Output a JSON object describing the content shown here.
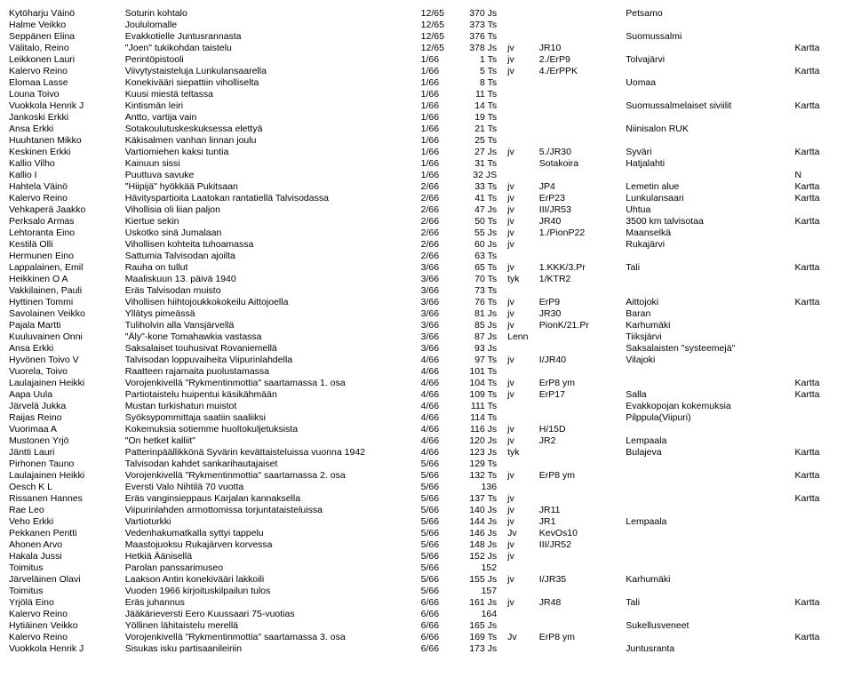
{
  "rows": [
    {
      "c0": "Kytöharju Väinö",
      "c1": "Soturin kohtalo",
      "c2": "12/65",
      "c3": "370 Js",
      "c4": "",
      "c5": "",
      "c6": "Petsamo",
      "c7": ""
    },
    {
      "c0": "Halme Veikko",
      "c1": "Joululomalle",
      "c2": "12/65",
      "c3": "373 Ts",
      "c4": "",
      "c5": "",
      "c6": "",
      "c7": ""
    },
    {
      "c0": "Seppänen Elina",
      "c1": "Evakkotielle Juntusrannasta",
      "c2": "12/65",
      "c3": "376 Ts",
      "c4": "",
      "c5": "",
      "c6": "Suomussalmi",
      "c7": ""
    },
    {
      "c0": "Välitalo, Reino",
      "c1": "\"Joen\" tukikohdan taistelu",
      "c2": "12/65",
      "c3": "378 Js",
      "c4": "jv",
      "c5": "JR10",
      "c6": "",
      "c7": "Kartta"
    },
    {
      "c0": "Leikkonen Lauri",
      "c1": "Perintöpistooli",
      "c2": "1/66",
      "c3": "1 Ts",
      "c4": "jv",
      "c5": "2./ErP9",
      "c6": "Tolvajärvi",
      "c7": ""
    },
    {
      "c0": "Kalervo Reino",
      "c1": "Viivytystaisteluja Lunkulansaarella",
      "c2": "1/66",
      "c3": "5 Ts",
      "c4": "jv",
      "c5": "4./ErPPK",
      "c6": "",
      "c7": "Kartta"
    },
    {
      "c0": "Elomaa Lasse",
      "c1": "Konekivääri siepattiin viholliselta",
      "c2": "1/66",
      "c3": "8 Ts",
      "c4": "",
      "c5": "",
      "c6": "Uomaa",
      "c7": ""
    },
    {
      "c0": "Louna Toivo",
      "c1": "Kuusi miestä teltassa",
      "c2": "1/66",
      "c3": "11 Ts",
      "c4": "",
      "c5": "",
      "c6": "",
      "c7": ""
    },
    {
      "c0": "Vuokkola Henrik J",
      "c1": "Kintismän leiri",
      "c2": "1/66",
      "c3": "14 Ts",
      "c4": "",
      "c5": "",
      "c6": "Suomussalmelaiset siviilit",
      "c7": "Kartta"
    },
    {
      "c0": "Jankoski Erkki",
      "c1": "Antto, vartija vain",
      "c2": "1/66",
      "c3": "19 Ts",
      "c4": "",
      "c5": "",
      "c6": "",
      "c7": ""
    },
    {
      "c0": "Ansa Erkki",
      "c1": "Sotakoulutuskeskuksessa elettyä",
      "c2": "1/66",
      "c3": "21 Ts",
      "c4": "",
      "c5": "",
      "c6": "Niinisalon RUK",
      "c7": ""
    },
    {
      "c0": "Huuhtanen Mikko",
      "c1": "Käkisalmen vanhan linnan joulu",
      "c2": "1/66",
      "c3": "25 Ts",
      "c4": "",
      "c5": "",
      "c6": "",
      "c7": ""
    },
    {
      "c0": "Keskinen Erkki",
      "c1": "Vartiomiehen kaksi tuntia",
      "c2": "1/66",
      "c3": "27 Js",
      "c4": "jv",
      "c5": "5./JR30",
      "c6": "Syväri",
      "c7": "Kartta"
    },
    {
      "c0": "Kallio Vilho",
      "c1": "Kainuun sissi",
      "c2": "1/66",
      "c3": "31 Ts",
      "c4": "",
      "c5": "Sotakoira",
      "c6": "Hatjalahti",
      "c7": ""
    },
    {
      "c0": "Kallio I",
      "c1": "Puuttuva savuke",
      "c2": "1/66",
      "c3": "32 JS",
      "c4": "",
      "c5": "",
      "c6": "",
      "c7": "N"
    },
    {
      "c0": "Hahtela Väinö",
      "c1": "\"Hiipijä\" hyökkää Pukitsaan",
      "c2": "2/66",
      "c3": "33 Ts",
      "c4": "jv",
      "c5": "JP4",
      "c6": "Lemetin alue",
      "c7": "Kartta"
    },
    {
      "c0": "Kalervo Reino",
      "c1": "Hävityspartioita Laatokan rantatiellä Talvisodassa",
      "c2": "2/66",
      "c3": "41 Ts",
      "c4": "jv",
      "c5": "ErP23",
      "c6": "Lunkulansaari",
      "c7": "Kartta"
    },
    {
      "c0": "Vehkaperä Jaakko",
      "c1": "Vihollisia oli liian paljon",
      "c2": "2/66",
      "c3": "47 Js",
      "c4": "jv",
      "c5": "III/JR53",
      "c6": "Uhtua",
      "c7": ""
    },
    {
      "c0": "Perksalo Armas",
      "c1": "Kiertue sekin",
      "c2": "2/66",
      "c3": "50 Ts",
      "c4": "jv",
      "c5": "JR40",
      "c6": "3500 km talvisotaa",
      "c7": "Kartta"
    },
    {
      "c0": "Lehtoranta Eino",
      "c1": "Uskotko sinä Jumalaan",
      "c2": "2/66",
      "c3": "55 Js",
      "c4": "jv",
      "c5": "1./PionP22",
      "c6": "Maanselkä",
      "c7": ""
    },
    {
      "c0": "Kestilä Olli",
      "c1": "Vihollisen kohteita tuhoamassa",
      "c2": "2/66",
      "c3": "60 Js",
      "c4": "jv",
      "c5": "",
      "c6": "Rukajärvi",
      "c7": ""
    },
    {
      "c0": "Hermunen Eino",
      "c1": "Sattumia Talvisodan ajoilta",
      "c2": "2/66",
      "c3": "63 Ts",
      "c4": "",
      "c5": "",
      "c6": "",
      "c7": ""
    },
    {
      "c0": "Lappalainen, Emil",
      "c1": "Rauha on tullut",
      "c2": "3/66",
      "c3": "65 Ts",
      "c4": "jv",
      "c5": "1.KKK/3.Pr",
      "c6": "Tali",
      "c7": "Kartta"
    },
    {
      "c0": "Heikkinen O A",
      "c1": "Maaliskuun 13. päivä 1940",
      "c2": "3/66",
      "c3": "70 Ts",
      "c4": "tyk",
      "c5": "1/KTR2",
      "c6": "",
      "c7": ""
    },
    {
      "c0": "Vakkilainen, Pauli",
      "c1": "Eräs Talvisodan muisto",
      "c2": "3/66",
      "c3": "73 Ts",
      "c4": "",
      "c5": "",
      "c6": "",
      "c7": ""
    },
    {
      "c0": "Hyttinen Tommi",
      "c1": "Vihollisen hiihtojoukkokokeilu Aittojoella",
      "c2": "3/66",
      "c3": "76 Ts",
      "c4": "jv",
      "c5": "ErP9",
      "c6": "Aittojoki",
      "c7": "Kartta"
    },
    {
      "c0": "Savolainen Veikko",
      "c1": "Yllätys pimeässä",
      "c2": "3/66",
      "c3": "81 Js",
      "c4": "jv",
      "c5": "JR30",
      "c6": "Baran",
      "c7": ""
    },
    {
      "c0": "Pajala Martti",
      "c1": "Tuliholvin alla Vansjärvellä",
      "c2": "3/66",
      "c3": "85 Js",
      "c4": "jv",
      "c5": "PionK/21.Pr",
      "c6": "Karhumäki",
      "c7": ""
    },
    {
      "c0": "Kuuluvainen Onni",
      "c1": "\"Äly\"-kone Tomahawkia vastassa",
      "c2": "3/66",
      "c3": "87 Js",
      "c4": "Lenn",
      "c5": "",
      "c6": "Tiiksjärvi",
      "c7": ""
    },
    {
      "c0": "Ansa Erkki",
      "c1": "Saksalaiset touhusivat Rovaniemellä",
      "c2": "3/66",
      "c3": "93 Js",
      "c4": "",
      "c5": "",
      "c6": "Saksalaisten \"systeemejä\"",
      "c7": ""
    },
    {
      "c0": "Hyvönen Toivo V",
      "c1": "Talvisodan loppuvaiheita Viipurinlahdella",
      "c2": "4/66",
      "c3": "97 Ts",
      "c4": "jv",
      "c5": "I/JR40",
      "c6": "Vilajoki",
      "c7": ""
    },
    {
      "c0": "Vuorela, Toivo",
      "c1": "Raatteen rajamaita puolustamassa",
      "c2": "4/66",
      "c3": "101 Ts",
      "c4": "",
      "c5": "",
      "c6": "",
      "c7": ""
    },
    {
      "c0": "Laulajainen Heikki",
      "c1": "Vorojenkivellä \"Rykmentinmottia\" saartamassa 1. osa",
      "c2": "4/66",
      "c3": "104 Ts",
      "c4": "jv",
      "c5": "ErP8 ym",
      "c6": "",
      "c7": "Kartta"
    },
    {
      "c0": "Aapa Uula",
      "c1": "Partiotaistelu huipentui käsikähmään",
      "c2": "4/66",
      "c3": "109 Ts",
      "c4": "jv",
      "c5": "ErP17",
      "c6": "Salla",
      "c7": "Kartta"
    },
    {
      "c0": "Järvelä Jukka",
      "c1": "Mustan turkishatun muistot",
      "c2": "4/66",
      "c3": "111 Ts",
      "c4": "",
      "c5": "",
      "c6": "Evakkopojan kokemuksia",
      "c7": ""
    },
    {
      "c0": "Raijas Reino",
      "c1": "Syöksypommittaja saatiin saaliiksi",
      "c2": "4/66",
      "c3": "114 Ts",
      "c4": "",
      "c5": "",
      "c6": "Pilppula(Viipuri)",
      "c7": ""
    },
    {
      "c0": "Vuorimaa A",
      "c1": "Kokemuksia sotiemme huoltokuljetuksista",
      "c2": "4/66",
      "c3": "116 Js",
      "c4": "jv",
      "c5": "H/15D",
      "c6": "",
      "c7": ""
    },
    {
      "c0": "Mustonen Yrjö",
      "c1": "\"On hetket kalliit\"",
      "c2": "4/66",
      "c3": "120 Js",
      "c4": "jv",
      "c5": "JR2",
      "c6": "Lempaala",
      "c7": ""
    },
    {
      "c0": "Jäntti Lauri",
      "c1": "Patterinpäällikkönä Syvärin kevättaisteluissa vuonna 1942",
      "c2": "4/66",
      "c3": "123 Js",
      "c4": "tyk",
      "c5": "",
      "c6": "Bulajeva",
      "c7": "Kartta"
    },
    {
      "c0": "Pirhonen Tauno",
      "c1": "Talvisodan kahdet sankarihautajaiset",
      "c2": "5/66",
      "c3": "129 Ts",
      "c4": "",
      "c5": "",
      "c6": "",
      "c7": ""
    },
    {
      "c0": "Laulajainen Heikki",
      "c1": "Vorojenkivellä \"Rykmentinmottia\" saartamassa 2. osa",
      "c2": "5/66",
      "c3": "132 Ts",
      "c4": "jv",
      "c5": "ErP8 ym",
      "c6": "",
      "c7": "Kartta"
    },
    {
      "c0": "Oesch K L",
      "c1": "Eversti Valo Nihtilä 70 vuotta",
      "c2": "5/66",
      "c3": "136",
      "c4": "",
      "c5": "",
      "c6": "",
      "c7": ""
    },
    {
      "c0": "Rissanen Hannes",
      "c1": "Eräs vanginsieppaus Karjalan kannaksella",
      "c2": "5/66",
      "c3": "137 Ts",
      "c4": "jv",
      "c5": "",
      "c6": "",
      "c7": "Kartta"
    },
    {
      "c0": "Rae Leo",
      "c1": "Viipurinlahden armottomissa torjuntataisteluissa",
      "c2": "5/66",
      "c3": "140 Js",
      "c4": "jv",
      "c5": "JR11",
      "c6": "",
      "c7": ""
    },
    {
      "c0": "Veho Erkki",
      "c1": "Vartioturkki",
      "c2": "5/66",
      "c3": "144 Js",
      "c4": "jv",
      "c5": "JR1",
      "c6": "Lempaala",
      "c7": ""
    },
    {
      "c0": "Pekkanen Pentti",
      "c1": "Vedenhakumatkalla syttyi tappelu",
      "c2": "5/66",
      "c3": "146 Js",
      "c4": "Jv",
      "c5": "KevOs10",
      "c6": "",
      "c7": ""
    },
    {
      "c0": "Ahonen Arvo",
      "c1": "Maastojuoksu Rukajärven korvessa",
      "c2": "5/66",
      "c3": "148 Js",
      "c4": "jv",
      "c5": "III/JR52",
      "c6": "",
      "c7": ""
    },
    {
      "c0": "Hakala Jussi",
      "c1": "Hetkiä Äänisellä",
      "c2": "5/66",
      "c3": "152 Js",
      "c4": "jv",
      "c5": "",
      "c6": "",
      "c7": ""
    },
    {
      "c0": "Toimitus",
      "c1": "Parolan panssarimuseo",
      "c2": "5/66",
      "c3": "152",
      "c4": "",
      "c5": "",
      "c6": "",
      "c7": ""
    },
    {
      "c0": "Järveläinen Olavi",
      "c1": "Laakson Antin konekivääri lakkoili",
      "c2": "5/66",
      "c3": "155 Js",
      "c4": "jv",
      "c5": "I/JR35",
      "c6": "Karhumäki",
      "c7": ""
    },
    {
      "c0": "Toimitus",
      "c1": "Vuoden 1966 kirjoituskilpailun tulos",
      "c2": "5/66",
      "c3": "157",
      "c4": "",
      "c5": "",
      "c6": "",
      "c7": ""
    },
    {
      "c0": "Yrjölä Eino",
      "c1": "Eräs juhannus",
      "c2": "6/66",
      "c3": "161 Js",
      "c4": "jv",
      "c5": "JR48",
      "c6": "Tali",
      "c7": "Kartta"
    },
    {
      "c0": "Kalervo Reino",
      "c1": "Jääkärieversti Eero Kuussaari 75-vuotias",
      "c2": "6/66",
      "c3": "164",
      "c4": "",
      "c5": "",
      "c6": "",
      "c7": ""
    },
    {
      "c0": "Hytiäinen Veikko",
      "c1": "Yöllinen lähitaistelu merellä",
      "c2": "6/66",
      "c3": "165 Js",
      "c4": "",
      "c5": "",
      "c6": "Sukellusveneet",
      "c7": ""
    },
    {
      "c0": "Kalervo Reino",
      "c1": "Vorojenkivellä \"Rykmentinmottia\" saartamassa 3. osa",
      "c2": "6/66",
      "c3": "169 Ts",
      "c4": "Jv",
      "c5": "ErP8 ym",
      "c6": "",
      "c7": "Kartta"
    },
    {
      "c0": "Vuokkola Henrik J",
      "c1": "Sisukas isku partisaanileiriin",
      "c2": "6/66",
      "c3": "173 Js",
      "c4": "",
      "c5": "",
      "c6": "Juntusranta",
      "c7": ""
    }
  ]
}
